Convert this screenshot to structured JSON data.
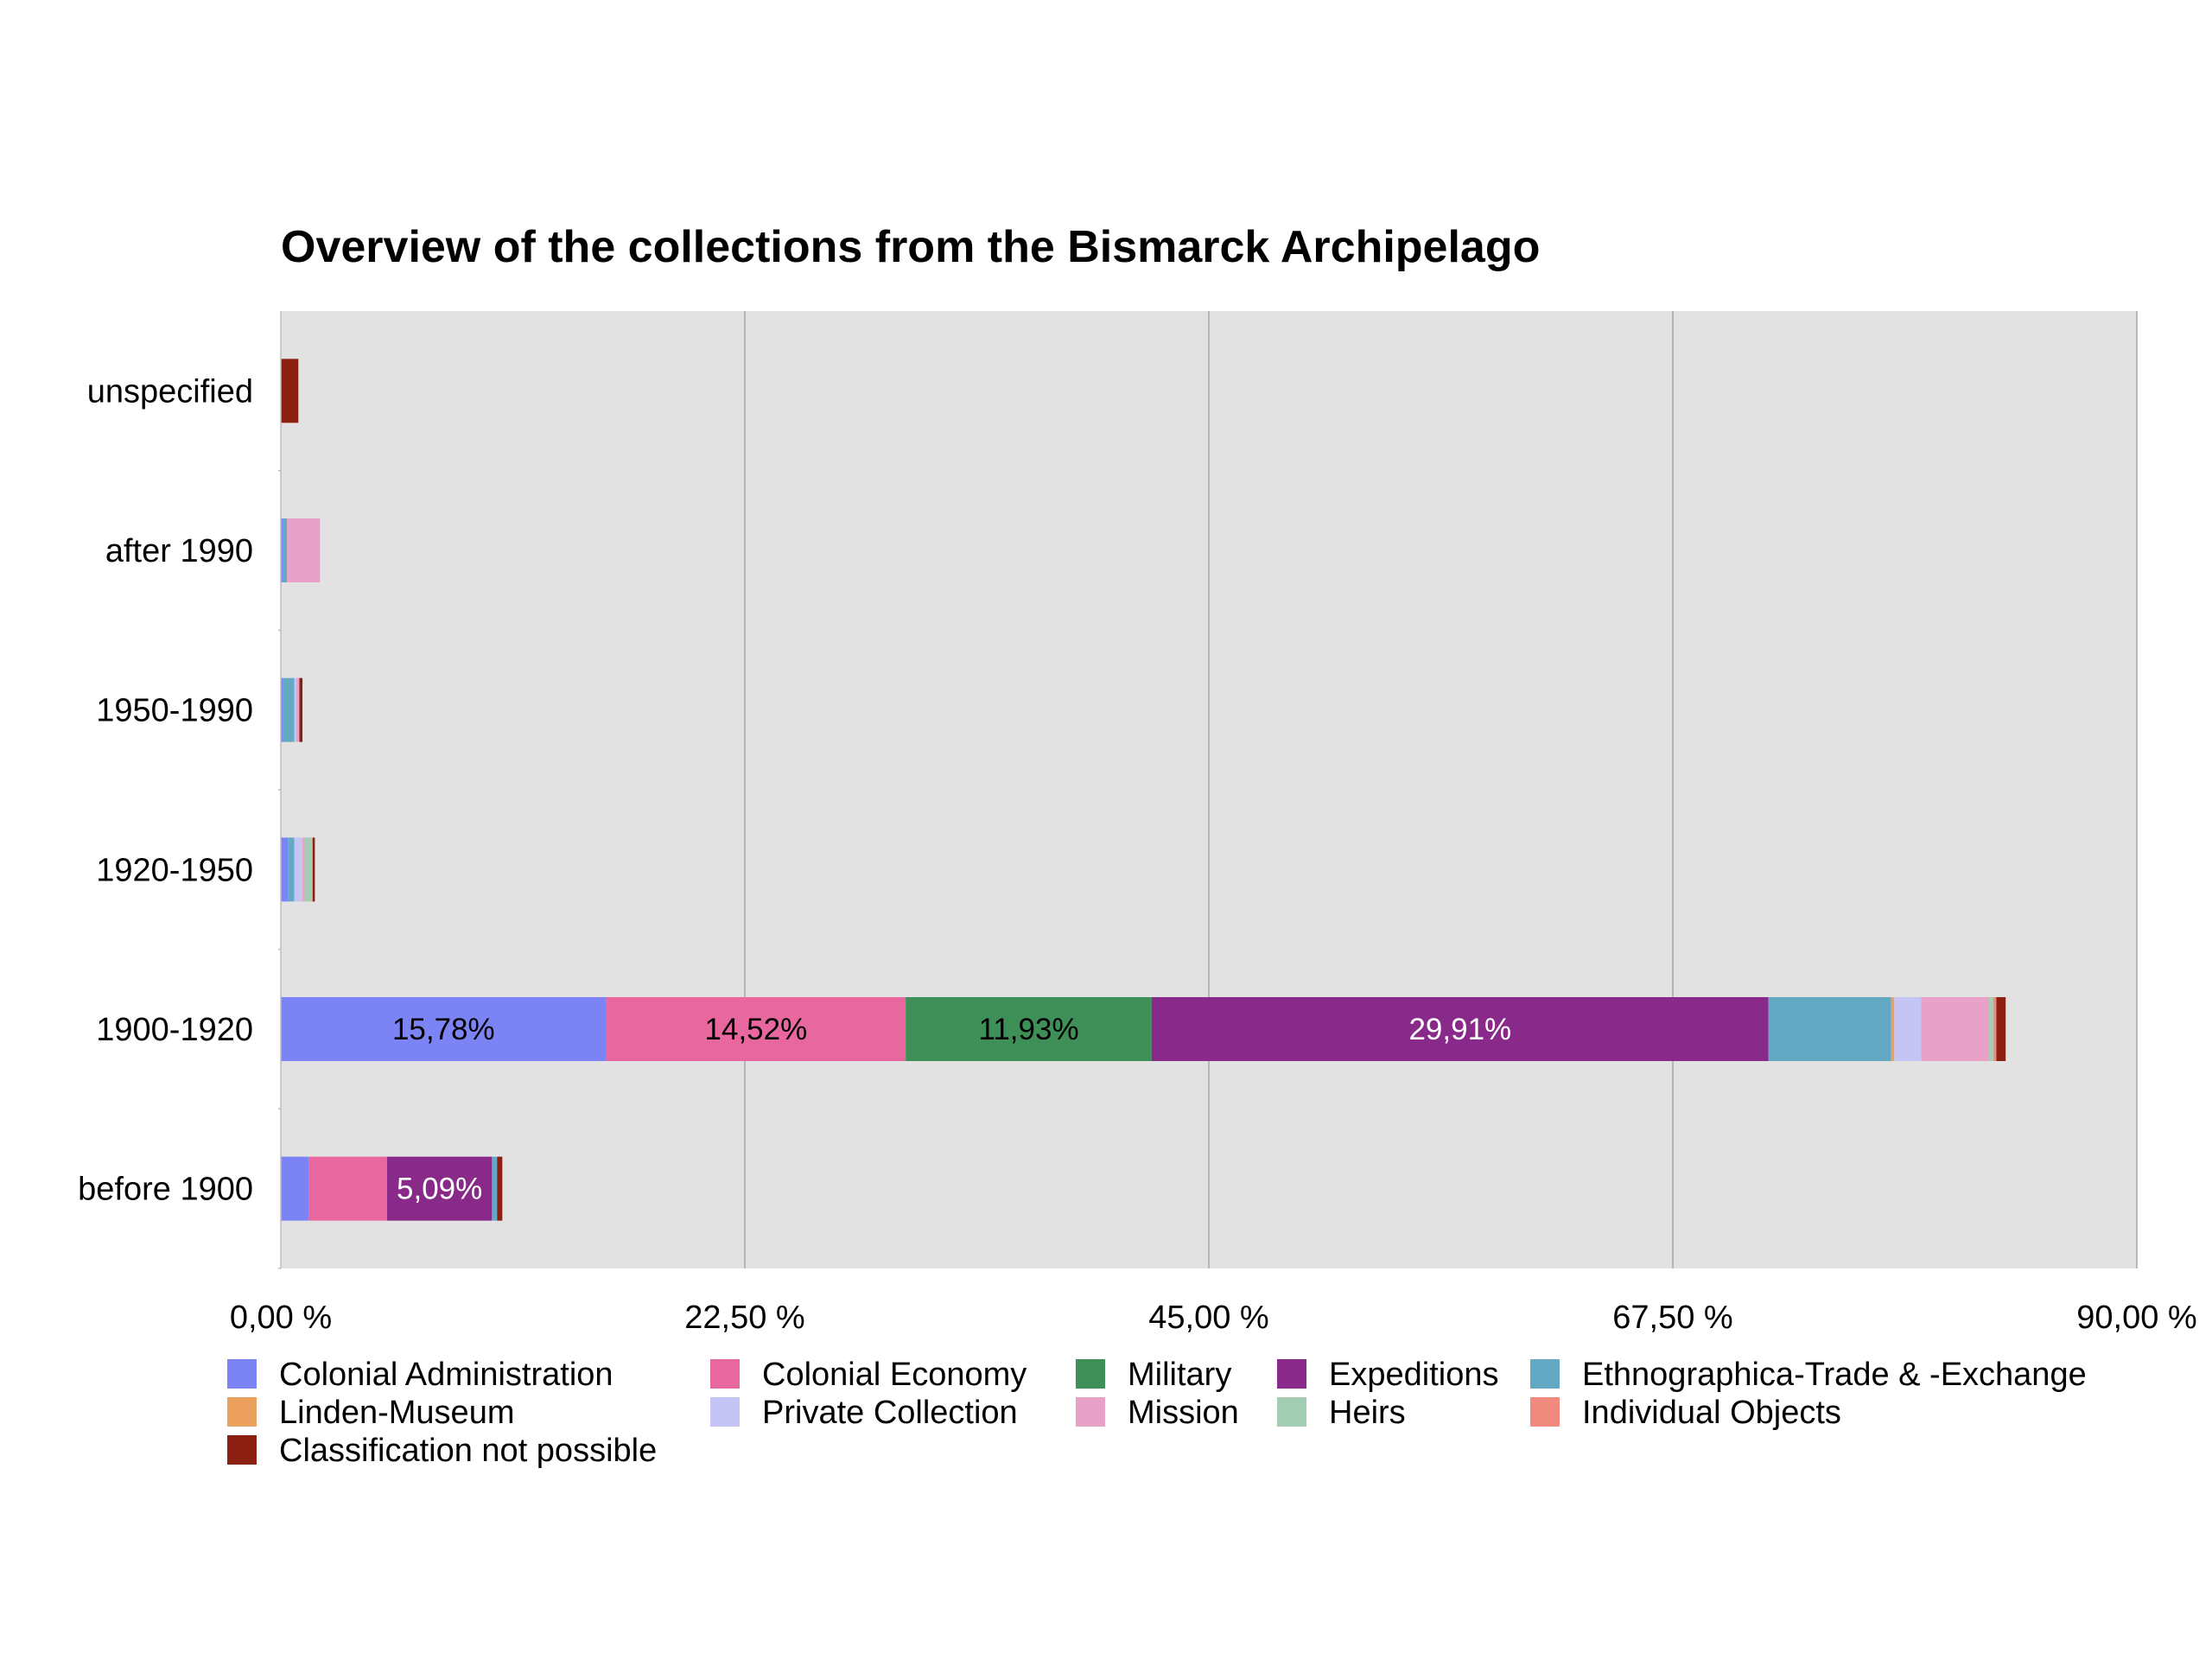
{
  "chart_data": {
    "type": "bar",
    "orientation": "horizontal",
    "stacked": true,
    "title": "Overview of the collections from the Bismarck Archipelago",
    "xlabel": "",
    "ylabel": "",
    "xlim": [
      0,
      90
    ],
    "x_ticks": [
      "0,00 %",
      "22,50 %",
      "45,00 %",
      "67,50 %",
      "90,00 %"
    ],
    "x_tick_values": [
      0,
      22.5,
      45,
      67.5,
      90
    ],
    "grid": "vertical",
    "legend_position": "bottom",
    "categories": [
      "unspecified",
      "after 1990",
      "1950-1990",
      "1920-1950",
      "1900-1920",
      "before 1900"
    ],
    "series": [
      {
        "name": "Colonial Administration",
        "color": "#7b83f5",
        "values": [
          0,
          0.1,
          0.1,
          0.35,
          15.78,
          1.35
        ]
      },
      {
        "name": "Colonial Economy",
        "color": "#e8679e",
        "values": [
          0,
          0,
          0,
          0,
          14.52,
          3.8
        ]
      },
      {
        "name": "Military",
        "color": "#3f8f58",
        "values": [
          0,
          0,
          0,
          0,
          11.93,
          0
        ]
      },
      {
        "name": "Expeditions",
        "color": "#892a8a",
        "values": [
          0,
          0,
          0,
          0,
          29.91,
          5.09
        ]
      },
      {
        "name": "Ethnographica-Trade & -Exchange",
        "color": "#64a9c4",
        "values": [
          0,
          0.2,
          0.55,
          0.3,
          5.95,
          0.25
        ]
      },
      {
        "name": "Linden-Museum",
        "color": "#eba05e",
        "values": [
          0,
          0,
          0,
          0,
          0.15,
          0
        ]
      },
      {
        "name": "Private Collection",
        "color": "#c4c5f5",
        "values": [
          0,
          0,
          0.1,
          0.4,
          1.3,
          0
        ]
      },
      {
        "name": "Mission",
        "color": "#e8a2c7",
        "values": [
          0,
          1.6,
          0.15,
          0.1,
          3.3,
          0
        ]
      },
      {
        "name": "Heirs",
        "color": "#a4ceb3",
        "values": [
          0,
          0,
          0,
          0.35,
          0.2,
          0
        ]
      },
      {
        "name": "Individual Objects",
        "color": "#f08a7e",
        "values": [
          0,
          0,
          0,
          0.05,
          0.15,
          0
        ]
      },
      {
        "name": "Classification not possible",
        "color": "#8b1f12",
        "values": [
          0.85,
          0,
          0.15,
          0.1,
          0.45,
          0.25
        ]
      }
    ],
    "data_labels": [
      {
        "category": "1900-1920",
        "series": "Colonial Administration",
        "text": "15,78%",
        "color": "#000000"
      },
      {
        "category": "1900-1920",
        "series": "Colonial Economy",
        "text": "14,52%",
        "color": "#000000"
      },
      {
        "category": "1900-1920",
        "series": "Military",
        "text": "11,93%",
        "color": "#000000"
      },
      {
        "category": "1900-1920",
        "series": "Expeditions",
        "text": "29,91%",
        "color": "#ffffff"
      },
      {
        "category": "before 1900",
        "series": "Expeditions",
        "text": "5,09%",
        "color": "#ffffff"
      }
    ],
    "plot_background": "#e2e2e2",
    "grid_color": "#a6a6a6"
  }
}
